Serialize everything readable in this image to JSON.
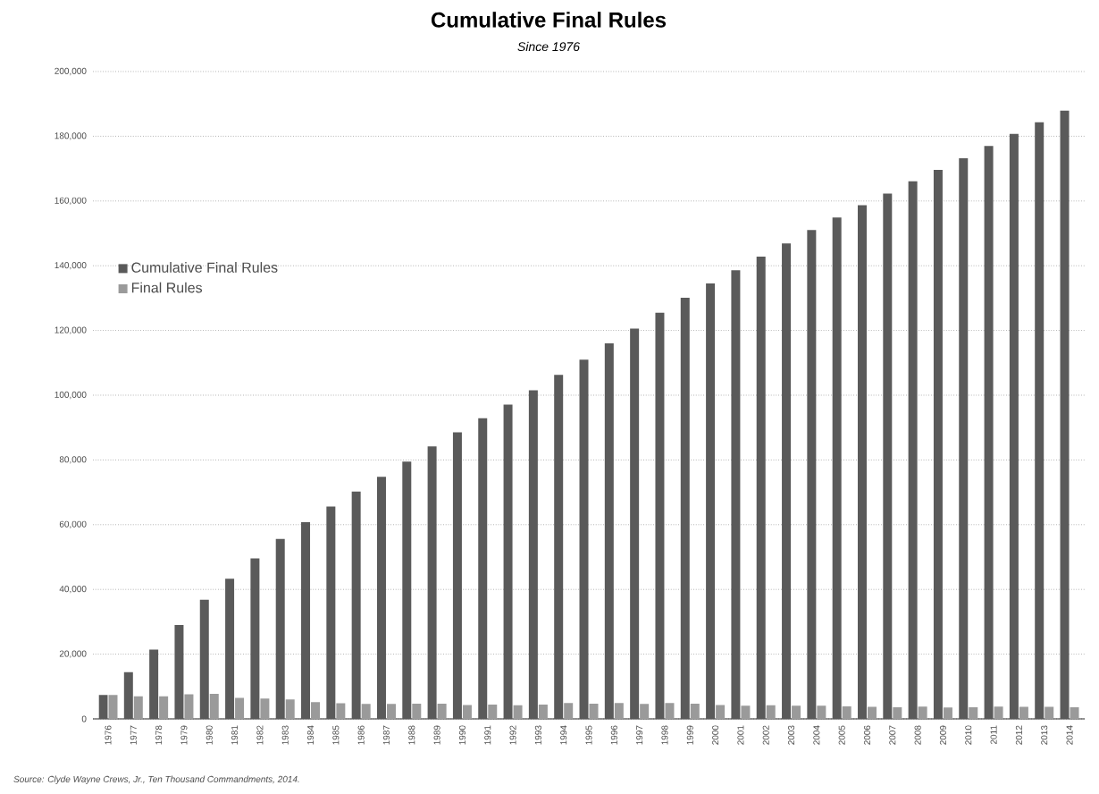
{
  "chart_data": {
    "type": "bar",
    "title": "Cumulative Final Rules",
    "subtitle": "*Since 1976*",
    "categories": [
      "1976",
      "1977",
      "1978",
      "1979",
      "1980",
      "1981",
      "1982",
      "1983",
      "1984",
      "1985",
      "1986",
      "1987",
      "1988",
      "1989",
      "1990",
      "1991",
      "1992",
      "1993",
      "1994",
      "1995",
      "1996",
      "1997",
      "1998",
      "1999",
      "2000",
      "2001",
      "2002",
      "2003",
      "2004",
      "2005",
      "2006",
      "2007",
      "2008",
      "2009",
      "2010",
      "2011",
      "2012",
      "2013",
      "2014"
    ],
    "series": [
      {
        "name": "Cumulative Final Rules",
        "color": "#5a5a5a",
        "values": [
          7400,
          14400,
          21400,
          29000,
          36800,
          43300,
          49600,
          55600,
          60800,
          65600,
          70200,
          74800,
          79500,
          84200,
          88500,
          92900,
          97100,
          101500,
          106300,
          111000,
          116000,
          120600,
          125500,
          130100,
          134500,
          138600,
          142800,
          146900,
          151000,
          154900,
          158700,
          162300,
          166100,
          169600,
          173200,
          177000,
          180700,
          184300,
          187900
        ]
      },
      {
        "name": "Final Rules",
        "color": "#9a9a9a",
        "values": [
          7400,
          7000,
          7000,
          7600,
          7700,
          6500,
          6300,
          6000,
          5200,
          4800,
          4600,
          4600,
          4700,
          4700,
          4300,
          4400,
          4200,
          4400,
          4900,
          4700,
          4900,
          4600,
          4900,
          4700,
          4300,
          4100,
          4200,
          4100,
          4100,
          3900,
          3700,
          3600,
          3800,
          3500,
          3600,
          3800,
          3700,
          3700,
          3600
        ]
      }
    ],
    "ylim": [
      0,
      200000
    ],
    "yticks": [
      {
        "value": 0,
        "label": "0"
      },
      {
        "value": 20000,
        "label": "20,000"
      },
      {
        "value": 40000,
        "label": "40,000"
      },
      {
        "value": 60000,
        "label": "60,000"
      },
      {
        "value": 80000,
        "label": "80,000"
      },
      {
        "value": 100000,
        "label": "100,000"
      },
      {
        "value": 120000,
        "label": "120,000"
      },
      {
        "value": 140000,
        "label": "140,000"
      },
      {
        "value": 160000,
        "label": "160,000"
      },
      {
        "value": 180000,
        "label": "180,000"
      },
      {
        "value": 200000,
        "label": "200,000"
      }
    ],
    "grid": "y",
    "legend": "left",
    "annotations": [
      "Source: Clyde Wayne Crews, Jr., *Ten Thousand Commandments*, 2014."
    ]
  }
}
